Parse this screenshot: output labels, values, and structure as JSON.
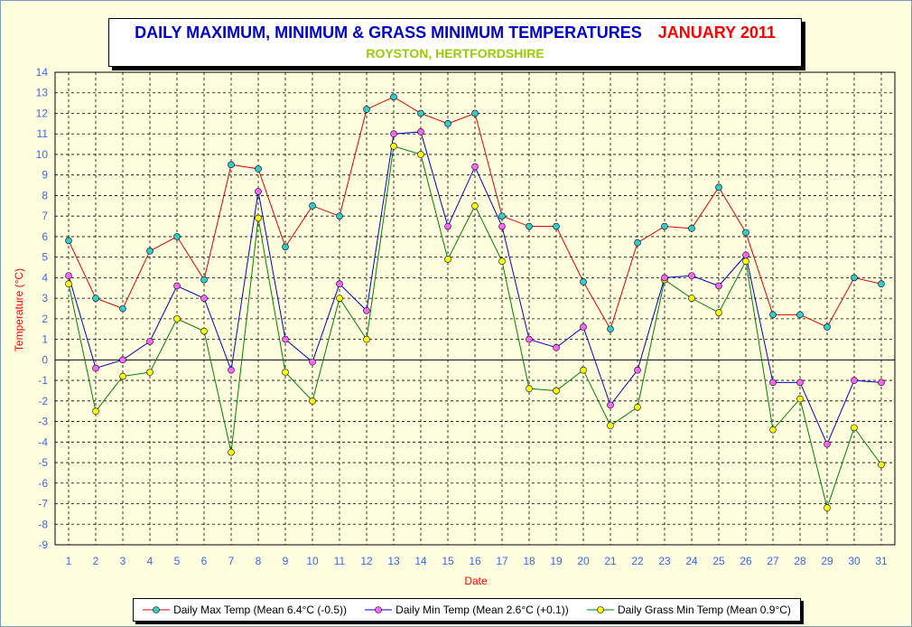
{
  "title": "DAILY MAXIMUM, MINIMUM & GRASS MINIMUM TEMPERATURES",
  "period": "JANUARY 2011",
  "subtitle": "ROYSTON, HERTFORDSHIRE",
  "colors": {
    "background": "#ffffe0",
    "max_line": "#e00000",
    "max_marker": "#33cccc",
    "min_line": "#0000cc",
    "min_marker": "#ff66ff",
    "grass_line": "#008000",
    "grass_marker": "#ffff00",
    "axis_label": "#ff0000",
    "tick_label": "#3366ff"
  },
  "chart_data": {
    "type": "line",
    "xlabel": "Date",
    "ylabel": "Temperature (°C)",
    "ylim": [
      -9,
      14
    ],
    "yticks": [
      14,
      13,
      12,
      11,
      10,
      9,
      8,
      7,
      6,
      5,
      4,
      3,
      2,
      1,
      0,
      -1,
      -2,
      -3,
      -4,
      -5,
      -6,
      -7,
      -8,
      -9
    ],
    "grid": true,
    "legend_position": "bottom",
    "x": [
      1,
      2,
      3,
      4,
      5,
      6,
      7,
      8,
      9,
      10,
      11,
      12,
      13,
      14,
      15,
      16,
      17,
      18,
      19,
      20,
      21,
      22,
      23,
      24,
      25,
      26,
      27,
      28,
      29,
      30,
      31
    ],
    "series": [
      {
        "name": "Daily Max Temp (Mean 6.4°C (-0.5))",
        "values": [
          5.8,
          3.0,
          2.5,
          5.3,
          6.0,
          3.9,
          9.5,
          9.3,
          5.5,
          7.5,
          7.0,
          12.2,
          12.8,
          12.0,
          11.5,
          12.0,
          7.0,
          6.5,
          6.5,
          3.8,
          1.5,
          5.7,
          6.5,
          6.4,
          8.4,
          6.2,
          2.2,
          2.2,
          1.6,
          4.0,
          3.7
        ]
      },
      {
        "name": "Daily Min Temp (Mean 2.6°C (+0.1))",
        "values": [
          4.1,
          -0.4,
          0.0,
          0.9,
          3.6,
          3.0,
          -0.5,
          8.2,
          1.0,
          -0.1,
          3.7,
          2.4,
          11.0,
          11.1,
          6.5,
          9.4,
          6.5,
          1.0,
          0.6,
          1.6,
          -2.2,
          -0.5,
          4.0,
          4.1,
          3.6,
          5.1,
          -1.1,
          -1.1,
          -4.1,
          -1.0,
          -1.1
        ]
      },
      {
        "name": "Daily Grass Min Temp (Mean 0.9°C)",
        "values": [
          3.7,
          -2.5,
          -0.8,
          -0.6,
          2.0,
          1.4,
          -4.5,
          6.9,
          -0.6,
          -2.0,
          3.0,
          1.0,
          10.4,
          10.0,
          4.9,
          7.5,
          4.8,
          -1.4,
          -1.5,
          -0.5,
          -3.2,
          -2.3,
          3.9,
          3.0,
          2.3,
          4.8,
          -3.4,
          -1.9,
          -7.2,
          -3.3,
          -5.1
        ]
      }
    ]
  }
}
